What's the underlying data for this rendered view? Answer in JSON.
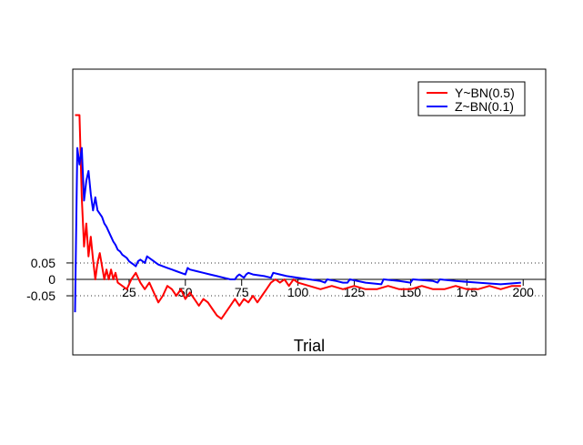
{
  "chart_data": {
    "type": "line",
    "xlabel": "Trial",
    "x_axis_ticks": [
      "25",
      "50",
      "75",
      "100",
      "125",
      "150",
      "175",
      "200"
    ],
    "y_axis_ticks": [
      "0.05",
      "0",
      "-0.05"
    ],
    "xlim": [
      0,
      210
    ],
    "ylim": [
      -0.23,
      0.64
    ],
    "reference_lines": {
      "y_zero": "solid",
      "y_0.05": "dotted",
      "y_-0.05": "dotted"
    },
    "legend_position": "top-right",
    "series": [
      {
        "name": "Y~BN(0.5)",
        "color": "#ff0000",
        "points": [
          [
            1,
            0.5
          ],
          [
            3,
            0.5
          ],
          [
            4,
            0.25
          ],
          [
            5,
            0.1
          ],
          [
            6,
            0.17
          ],
          [
            7,
            0.07
          ],
          [
            8,
            0.13
          ],
          [
            9,
            0.06
          ],
          [
            10,
            0.0
          ],
          [
            11,
            0.05
          ],
          [
            12,
            0.08
          ],
          [
            13,
            0.04
          ],
          [
            14,
            0.0
          ],
          [
            15,
            0.03
          ],
          [
            16,
            0.0
          ],
          [
            17,
            0.03
          ],
          [
            18,
            0.0
          ],
          [
            19,
            0.02
          ],
          [
            20,
            -0.01
          ],
          [
            22,
            -0.02
          ],
          [
            24,
            -0.03
          ],
          [
            26,
            0.0
          ],
          [
            28,
            0.02
          ],
          [
            30,
            -0.01
          ],
          [
            32,
            -0.03
          ],
          [
            34,
            -0.01
          ],
          [
            36,
            -0.04
          ],
          [
            38,
            -0.07
          ],
          [
            40,
            -0.05
          ],
          [
            42,
            -0.02
          ],
          [
            44,
            -0.03
          ],
          [
            46,
            -0.05
          ],
          [
            48,
            -0.03
          ],
          [
            50,
            -0.06
          ],
          [
            52,
            -0.04
          ],
          [
            54,
            -0.06
          ],
          [
            56,
            -0.08
          ],
          [
            58,
            -0.06
          ],
          [
            60,
            -0.07
          ],
          [
            62,
            -0.09
          ],
          [
            64,
            -0.11
          ],
          [
            66,
            -0.12
          ],
          [
            68,
            -0.1
          ],
          [
            70,
            -0.08
          ],
          [
            72,
            -0.06
          ],
          [
            74,
            -0.08
          ],
          [
            76,
            -0.06
          ],
          [
            78,
            -0.07
          ],
          [
            80,
            -0.05
          ],
          [
            82,
            -0.07
          ],
          [
            84,
            -0.05
          ],
          [
            86,
            -0.03
          ],
          [
            88,
            -0.01
          ],
          [
            90,
            0.0
          ],
          [
            92,
            -0.01
          ],
          [
            94,
            0.0
          ],
          [
            96,
            -0.02
          ],
          [
            98,
            0.0
          ],
          [
            100,
            -0.01
          ],
          [
            105,
            -0.02
          ],
          [
            110,
            -0.03
          ],
          [
            115,
            -0.02
          ],
          [
            120,
            -0.03
          ],
          [
            125,
            -0.02
          ],
          [
            130,
            -0.03
          ],
          [
            135,
            -0.03
          ],
          [
            140,
            -0.02
          ],
          [
            145,
            -0.03
          ],
          [
            150,
            -0.03
          ],
          [
            155,
            -0.02
          ],
          [
            160,
            -0.03
          ],
          [
            165,
            -0.03
          ],
          [
            170,
            -0.02
          ],
          [
            175,
            -0.03
          ],
          [
            180,
            -0.03
          ],
          [
            185,
            -0.02
          ],
          [
            190,
            -0.03
          ],
          [
            195,
            -0.02
          ],
          [
            199,
            -0.02
          ]
        ]
      },
      {
        "name": "Z~BN(0.1)",
        "color": "#0000ff",
        "points": [
          [
            1,
            -0.1
          ],
          [
            2,
            0.4
          ],
          [
            3,
            0.35
          ],
          [
            4,
            0.4
          ],
          [
            5,
            0.24
          ],
          [
            6,
            0.3
          ],
          [
            7,
            0.33
          ],
          [
            8,
            0.26
          ],
          [
            9,
            0.21
          ],
          [
            10,
            0.25
          ],
          [
            11,
            0.21
          ],
          [
            12,
            0.2
          ],
          [
            13,
            0.19
          ],
          [
            14,
            0.17
          ],
          [
            15,
            0.16
          ],
          [
            16,
            0.145
          ],
          [
            17,
            0.13
          ],
          [
            18,
            0.115
          ],
          [
            19,
            0.105
          ],
          [
            20,
            0.09
          ],
          [
            21,
            0.085
          ],
          [
            22,
            0.075
          ],
          [
            23,
            0.07
          ],
          [
            24,
            0.065
          ],
          [
            25,
            0.055
          ],
          [
            26,
            0.05
          ],
          [
            27,
            0.045
          ],
          [
            28,
            0.04
          ],
          [
            29,
            0.055
          ],
          [
            30,
            0.06
          ],
          [
            31,
            0.055
          ],
          [
            32,
            0.05
          ],
          [
            33,
            0.07
          ],
          [
            34,
            0.065
          ],
          [
            35,
            0.06
          ],
          [
            36,
            0.055
          ],
          [
            37,
            0.05
          ],
          [
            38,
            0.045
          ],
          [
            40,
            0.04
          ],
          [
            42,
            0.035
          ],
          [
            44,
            0.03
          ],
          [
            46,
            0.025
          ],
          [
            48,
            0.02
          ],
          [
            50,
            0.015
          ],
          [
            51,
            0.035
          ],
          [
            52,
            0.03
          ],
          [
            55,
            0.025
          ],
          [
            58,
            0.02
          ],
          [
            61,
            0.015
          ],
          [
            64,
            0.01
          ],
          [
            67,
            0.005
          ],
          [
            70,
            0.0
          ],
          [
            72,
            0.0
          ],
          [
            73,
            0.01
          ],
          [
            74,
            0.015
          ],
          [
            75,
            0.01
          ],
          [
            76,
            0.005
          ],
          [
            77,
            0.015
          ],
          [
            78,
            0.02
          ],
          [
            80,
            0.015
          ],
          [
            85,
            0.01
          ],
          [
            88,
            0.005
          ],
          [
            89,
            0.02
          ],
          [
            92,
            0.015
          ],
          [
            95,
            0.01
          ],
          [
            100,
            0.005
          ],
          [
            105,
            0.0
          ],
          [
            110,
            -0.005
          ],
          [
            112,
            -0.01
          ],
          [
            113,
            0.0
          ],
          [
            117,
            -0.005
          ],
          [
            120,
            -0.01
          ],
          [
            122,
            -0.01
          ],
          [
            123,
            0.0
          ],
          [
            130,
            -0.01
          ],
          [
            137,
            -0.015
          ],
          [
            138,
            0.0
          ],
          [
            145,
            -0.005
          ],
          [
            150,
            -0.01
          ],
          [
            151,
            0.0
          ],
          [
            160,
            -0.005
          ],
          [
            162,
            -0.01
          ],
          [
            163,
            0.0
          ],
          [
            170,
            -0.005
          ],
          [
            180,
            -0.01
          ],
          [
            190,
            -0.015
          ],
          [
            199,
            -0.01
          ]
        ]
      }
    ]
  }
}
